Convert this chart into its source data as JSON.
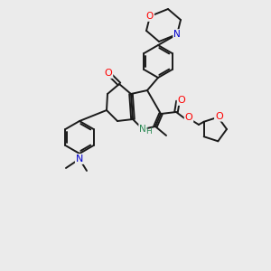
{
  "bg_color": "#ebebeb",
  "bond_color": "#1a1a1a",
  "atom_colors": {
    "O": "#ff0000",
    "N": "#0000cc",
    "NH": "#2e8b57",
    "C": "#1a1a1a"
  }
}
